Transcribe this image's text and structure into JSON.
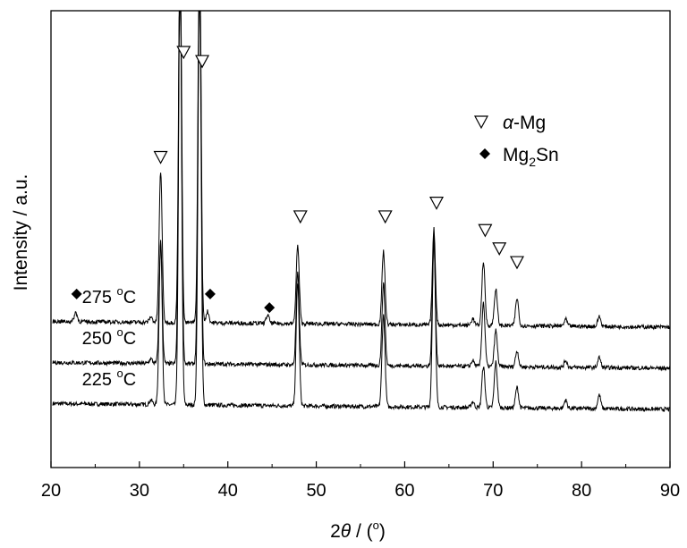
{
  "chart_data": {
    "type": "line",
    "xlabel": "2θ / (°)",
    "xlabel_parts": {
      "pre": "2",
      "theta": "θ",
      "mid": " / (",
      "degree": "o",
      "post": ")"
    },
    "ylabel": "Intensity / a.u.",
    "xlim": [
      20,
      90
    ],
    "xticks": [
      20,
      30,
      40,
      50,
      60,
      70,
      80,
      90
    ],
    "ylim": [
      0,
      100
    ],
    "yticks_shown": false,
    "grid": false,
    "legend_placement": "top-right",
    "legend": [
      {
        "marker": "open-triangle-down",
        "label": "α-Mg",
        "label_parts": {
          "alpha": "α",
          "rest": "-Mg"
        }
      },
      {
        "marker": "filled-diamond",
        "label": "Mg2Sn",
        "label_parts": {
          "base": "Mg",
          "sub": "2",
          "post": "Sn"
        }
      }
    ],
    "series": [
      {
        "temp": "225",
        "unit": "C",
        "degree": "o",
        "baseline": 14,
        "peaks": [
          {
            "x": 31.3,
            "h": 1.0
          },
          {
            "x": 32.4,
            "h": 36
          },
          {
            "x": 34.6,
            "h": 95
          },
          {
            "x": 36.8,
            "h": 95
          },
          {
            "x": 47.9,
            "h": 27
          },
          {
            "x": 57.6,
            "h": 20
          },
          {
            "x": 63.3,
            "h": 38
          },
          {
            "x": 67.7,
            "h": 1.3
          },
          {
            "x": 68.9,
            "h": 9
          },
          {
            "x": 70.3,
            "h": 10
          },
          {
            "x": 72.7,
            "h": 4.5
          },
          {
            "x": 78.2,
            "h": 1.8
          },
          {
            "x": 82.0,
            "h": 3.0
          }
        ]
      },
      {
        "temp": "250",
        "unit": "C",
        "degree": "o",
        "baseline": 23,
        "peaks": [
          {
            "x": 31.3,
            "h": 1.0
          },
          {
            "x": 32.4,
            "h": 26
          },
          {
            "x": 34.6,
            "h": 90
          },
          {
            "x": 36.8,
            "h": 90
          },
          {
            "x": 47.9,
            "h": 20
          },
          {
            "x": 57.6,
            "h": 18
          },
          {
            "x": 63.3,
            "h": 27
          },
          {
            "x": 67.7,
            "h": 1.3
          },
          {
            "x": 68.9,
            "h": 14
          },
          {
            "x": 70.3,
            "h": 8
          },
          {
            "x": 72.7,
            "h": 3.5
          },
          {
            "x": 78.2,
            "h": 1.5
          },
          {
            "x": 82.0,
            "h": 2.2
          }
        ]
      },
      {
        "temp": "275",
        "unit": "C",
        "degree": "o",
        "baseline": 32,
        "peaks": [
          {
            "x": 22.8,
            "h": 2.0
          },
          {
            "x": 31.3,
            "h": 1.2
          },
          {
            "x": 32.4,
            "h": 33
          },
          {
            "x": 34.6,
            "h": 85
          },
          {
            "x": 36.8,
            "h": 85
          },
          {
            "x": 37.7,
            "h": 2.5
          },
          {
            "x": 44.5,
            "h": 1.8
          },
          {
            "x": 47.9,
            "h": 17
          },
          {
            "x": 57.6,
            "h": 16
          },
          {
            "x": 63.3,
            "h": 21
          },
          {
            "x": 67.7,
            "h": 1.5
          },
          {
            "x": 68.9,
            "h": 14
          },
          {
            "x": 70.3,
            "h": 8
          },
          {
            "x": 72.7,
            "h": 6
          },
          {
            "x": 78.2,
            "h": 1.5
          },
          {
            "x": 82.0,
            "h": 2.2
          }
        ]
      }
    ],
    "annotations": [
      {
        "marker": "open-triangle-down",
        "x": 32.4,
        "y": 68
      },
      {
        "marker": "open-triangle-down",
        "x": 35.0,
        "y": 91
      },
      {
        "marker": "open-triangle-down",
        "x": 37.1,
        "y": 89
      },
      {
        "marker": "open-triangle-down",
        "x": 48.2,
        "y": 55
      },
      {
        "marker": "open-triangle-down",
        "x": 57.8,
        "y": 55
      },
      {
        "marker": "open-triangle-down",
        "x": 63.6,
        "y": 58
      },
      {
        "marker": "open-triangle-down",
        "x": 69.1,
        "y": 52
      },
      {
        "marker": "open-triangle-down",
        "x": 70.7,
        "y": 48
      },
      {
        "marker": "open-triangle-down",
        "x": 72.7,
        "y": 45
      },
      {
        "marker": "filled-diamond",
        "x": 22.9,
        "y": 38
      },
      {
        "marker": "filled-diamond",
        "x": 38.0,
        "y": 38
      },
      {
        "marker": "filled-diamond",
        "x": 44.7,
        "y": 35
      }
    ]
  }
}
